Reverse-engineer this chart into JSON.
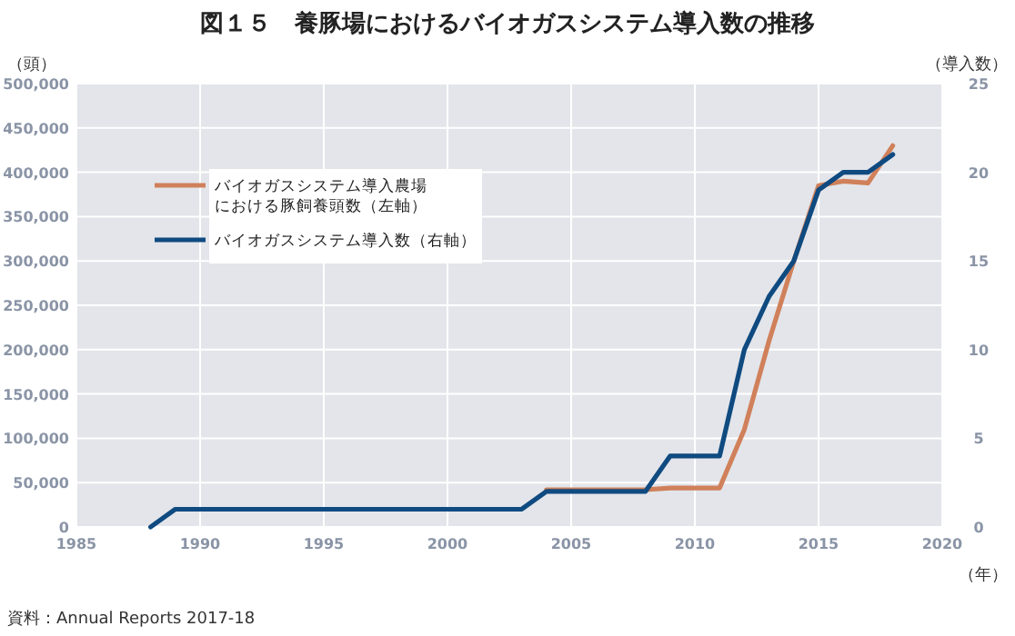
{
  "chart_data": {
    "type": "line",
    "title": "図１５　養豚場におけるバイオガスシステム導入数の推移",
    "xlabel": "（年）",
    "ylabel": "（頭）",
    "y2label": "（導入数）",
    "annotations": [
      "資料：Annual Reports 2017-18"
    ],
    "series": [
      {
        "name": "バイオガスシステム導入農場における豚飼養頭数（左軸）",
        "color": "#d0805a",
        "x": [
          2004,
          2008,
          2009,
          2011,
          2012,
          2013,
          2014,
          2015,
          2016,
          2017,
          2018
        ],
        "values": [
          42000,
          42000,
          44000,
          44000,
          110000,
          210000,
          300000,
          385000,
          390000,
          388000,
          430000
        ]
      },
      {
        "name": "バイオガスシステム導入数（右軸）",
        "color": "#0f4a80",
        "axis": "y2",
        "x": [
          1988,
          1989,
          2003,
          2004,
          2008,
          2009,
          2011,
          2012,
          2013,
          2014,
          2015,
          2016,
          2017,
          2018
        ],
        "values": [
          0,
          1,
          1,
          2,
          2,
          4,
          4,
          10,
          13,
          15,
          19,
          20,
          20,
          21
        ]
      }
    ],
    "xlim": [
      1985,
      2020
    ],
    "xticks": [
      1985,
      1990,
      1995,
      2000,
      2005,
      2010,
      2015,
      2020
    ],
    "ylim": [
      0,
      500000
    ],
    "yticks": [
      0,
      {
        "value": 50000,
        "label": "50,000"
      },
      {
        "value": 100000,
        "label": "100,000"
      },
      {
        "value": 150000,
        "label": "150,000"
      },
      {
        "value": 200000,
        "label": "200,000"
      },
      {
        "value": 250000,
        "label": "250,000"
      },
      {
        "value": 300000,
        "label": "300,000"
      },
      {
        "value": 350000,
        "label": "350,000"
      },
      {
        "value": 400000,
        "label": "400,000"
      },
      {
        "value": 450000,
        "label": "450,000"
      },
      {
        "value": 500000,
        "label": "500,000"
      }
    ],
    "y2lim": [
      0,
      25
    ],
    "y2ticks": [
      0,
      5,
      10,
      15,
      20,
      25
    ],
    "grid": true,
    "legend": "top left",
    "line_style": "solid"
  }
}
